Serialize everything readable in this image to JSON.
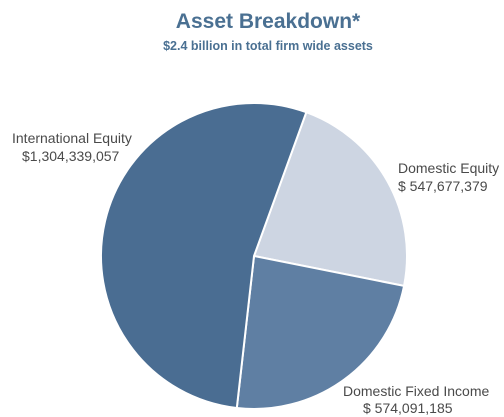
{
  "chart_data": {
    "type": "pie",
    "title": "Asset Breakdown*",
    "subtitle": "$2.4 billion in total firm wide assets",
    "slices": [
      {
        "name": "International Equity",
        "value_label": "$1,304,339,057",
        "value": 1304339057,
        "color": "#4a6d92"
      },
      {
        "name": "Domestic Equity",
        "value_label": "$ 547,677,379",
        "value": 547677379,
        "color": "#cdd5e2"
      },
      {
        "name": "Domestic Fixed Income",
        "value_label": "$ 574,091,185",
        "value": 574091185,
        "color": "#5f7fa3"
      }
    ]
  },
  "colors": {
    "title": "#4a7092",
    "subtitle": "#4a7092",
    "label_text": "#4a4a4a",
    "slice_border": "#ffffff"
  }
}
